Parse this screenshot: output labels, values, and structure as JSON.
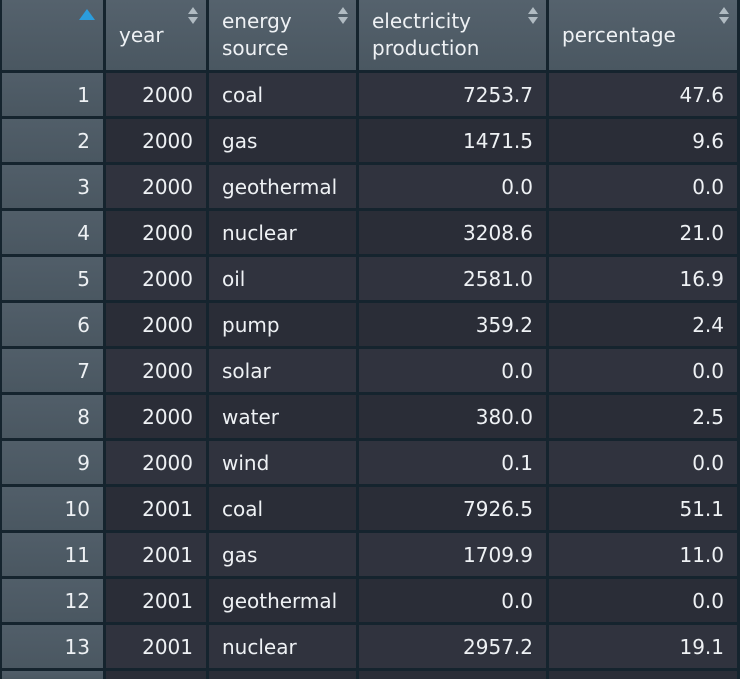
{
  "table": {
    "columns": [
      {
        "label": "",
        "sort_state": "ascending",
        "sort_icon": "sorted-ascending-icon"
      },
      {
        "label": "year",
        "sort_state": "unsorted",
        "sort_icon": "sort-toggle-icon"
      },
      {
        "label": "energy source",
        "sort_state": "unsorted",
        "sort_icon": "sort-toggle-icon"
      },
      {
        "label": "electricity production",
        "sort_state": "unsorted",
        "sort_icon": "sort-toggle-icon"
      },
      {
        "label": "percentage",
        "sort_state": "unsorted",
        "sort_icon": "sort-toggle-icon"
      }
    ],
    "rows": [
      {
        "index": "1",
        "year": "2000",
        "energy_source": "coal",
        "electricity_production": "7253.7",
        "percentage": "47.6"
      },
      {
        "index": "2",
        "year": "2000",
        "energy_source": "gas",
        "electricity_production": "1471.5",
        "percentage": "9.6"
      },
      {
        "index": "3",
        "year": "2000",
        "energy_source": "geothermal",
        "electricity_production": "0.0",
        "percentage": "0.0"
      },
      {
        "index": "4",
        "year": "2000",
        "energy_source": "nuclear",
        "electricity_production": "3208.6",
        "percentage": "21.0"
      },
      {
        "index": "5",
        "year": "2000",
        "energy_source": "oil",
        "electricity_production": "2581.0",
        "percentage": "16.9"
      },
      {
        "index": "6",
        "year": "2000",
        "energy_source": "pump",
        "electricity_production": "359.2",
        "percentage": "2.4"
      },
      {
        "index": "7",
        "year": "2000",
        "energy_source": "solar",
        "electricity_production": "0.0",
        "percentage": "0.0"
      },
      {
        "index": "8",
        "year": "2000",
        "energy_source": "water",
        "electricity_production": "380.0",
        "percentage": "2.5"
      },
      {
        "index": "9",
        "year": "2000",
        "energy_source": "wind",
        "electricity_production": "0.1",
        "percentage": "0.0"
      },
      {
        "index": "10",
        "year": "2001",
        "energy_source": "coal",
        "electricity_production": "7926.5",
        "percentage": "51.1"
      },
      {
        "index": "11",
        "year": "2001",
        "energy_source": "gas",
        "electricity_production": "1709.9",
        "percentage": "11.0"
      },
      {
        "index": "12",
        "year": "2001",
        "energy_source": "geothermal",
        "electricity_production": "0.0",
        "percentage": "0.0"
      },
      {
        "index": "13",
        "year": "2001",
        "energy_source": "nuclear",
        "electricity_production": "2957.2",
        "percentage": "19.1"
      }
    ]
  },
  "colors": {
    "header_bg": "#4e5b66",
    "index_column_bg": "#4d5a65",
    "row_odd_bg": "#30333e",
    "row_even_bg": "#2a2d37",
    "grid_border": "#15242e",
    "text": "#eef1f4",
    "sort_arrow_inactive": "#b0bbc2",
    "sort_arrow_active": "#2b9ddd"
  }
}
